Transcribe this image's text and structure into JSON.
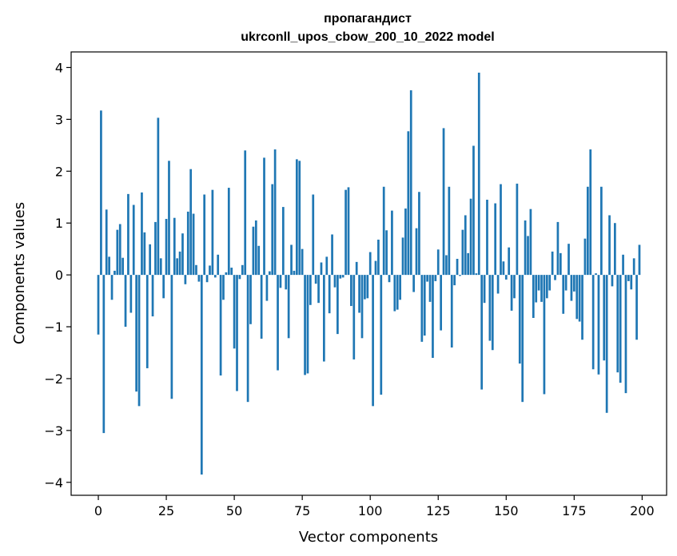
{
  "chart_data": {
    "type": "bar",
    "title_line1": "пропагандист",
    "title_line2": "ukrconll_upos_cbow_200_10_2022 model",
    "xlabel": "Vector components",
    "ylabel": "Components values",
    "xlim": [
      -10,
      209
    ],
    "ylim": [
      -4.25,
      4.3
    ],
    "xticks": [
      0,
      25,
      50,
      75,
      100,
      125,
      150,
      175,
      200
    ],
    "xtick_labels": [
      "0",
      "25",
      "50",
      "75",
      "100",
      "125",
      "150",
      "175",
      "200"
    ],
    "yticks": [
      -4,
      -3,
      -2,
      -1,
      0,
      1,
      2,
      3,
      4
    ],
    "ytick_labels": [
      "−4",
      "−3",
      "−2",
      "−1",
      "0",
      "1",
      "2",
      "3",
      "4"
    ],
    "grid": false,
    "bar_color": "#1f77b4",
    "x": [
      0,
      1,
      2,
      3,
      4,
      5,
      6,
      7,
      8,
      9,
      10,
      11,
      12,
      13,
      14,
      15,
      16,
      17,
      18,
      19,
      20,
      21,
      22,
      23,
      24,
      25,
      26,
      27,
      28,
      29,
      30,
      31,
      32,
      33,
      34,
      35,
      36,
      37,
      38,
      39,
      40,
      41,
      42,
      43,
      44,
      45,
      46,
      47,
      48,
      49,
      50,
      51,
      52,
      53,
      54,
      55,
      56,
      57,
      58,
      59,
      60,
      61,
      62,
      63,
      64,
      65,
      66,
      67,
      68,
      69,
      70,
      71,
      72,
      73,
      74,
      75,
      76,
      77,
      78,
      79,
      80,
      81,
      82,
      83,
      84,
      85,
      86,
      87,
      88,
      89,
      90,
      91,
      92,
      93,
      94,
      95,
      96,
      97,
      98,
      99,
      100,
      101,
      102,
      103,
      104,
      105,
      106,
      107,
      108,
      109,
      110,
      111,
      112,
      113,
      114,
      115,
      116,
      117,
      118,
      119,
      120,
      121,
      122,
      123,
      124,
      125,
      126,
      127,
      128,
      129,
      130,
      131,
      132,
      133,
      134,
      135,
      136,
      137,
      138,
      139,
      140,
      141,
      142,
      143,
      144,
      145,
      146,
      147,
      148,
      149,
      150,
      151,
      152,
      153,
      154,
      155,
      156,
      157,
      158,
      159,
      160,
      161,
      162,
      163,
      164,
      165,
      166,
      167,
      168,
      169,
      170,
      171,
      172,
      173,
      174,
      175,
      176,
      177,
      178,
      179,
      180,
      181,
      182,
      183,
      184,
      185,
      186,
      187,
      188,
      189,
      190,
      191,
      192,
      193,
      194,
      195,
      196,
      197,
      198,
      199
    ],
    "values": [
      -1.15,
      3.17,
      -3.05,
      1.26,
      0.35,
      -0.48,
      0.08,
      0.87,
      0.98,
      0.33,
      -1.0,
      1.56,
      -0.73,
      1.35,
      -2.25,
      -2.53,
      1.59,
      0.82,
      -1.8,
      0.59,
      -0.8,
      1.02,
      3.03,
      0.32,
      -0.45,
      1.08,
      2.2,
      -2.39,
      1.1,
      0.32,
      0.45,
      0.8,
      -0.18,
      1.22,
      2.04,
      1.18,
      0.19,
      -0.13,
      -3.85,
      1.55,
      -0.14,
      0.18,
      1.64,
      -0.05,
      0.39,
      -1.94,
      -0.48,
      0.05,
      1.68,
      0.14,
      -1.42,
      -2.24,
      -0.08,
      0.19,
      2.4,
      -2.45,
      -0.95,
      0.93,
      1.05,
      0.56,
      -1.23,
      2.26,
      -0.5,
      0.07,
      1.75,
      2.42,
      -1.84,
      -0.25,
      1.31,
      -0.28,
      -1.22,
      0.58,
      0.08,
      2.23,
      2.2,
      0.5,
      -1.93,
      -1.9,
      -0.58,
      1.55,
      -0.17,
      -0.54,
      0.24,
      -1.67,
      0.35,
      -0.74,
      0.78,
      -0.24,
      -1.14,
      -0.07,
      -0.05,
      1.64,
      1.69,
      -0.6,
      -1.63,
      0.25,
      -0.73,
      -1.22,
      -0.47,
      -0.45,
      0.44,
      -2.53,
      0.27,
      0.68,
      -2.31,
      1.7,
      0.86,
      -0.14,
      1.24,
      -0.7,
      -0.67,
      -0.48,
      0.72,
      1.28,
      2.77,
      3.56,
      -0.33,
      0.9,
      1.6,
      -1.29,
      -1.17,
      -0.13,
      -0.52,
      -1.6,
      -0.12,
      0.49,
      -1.07,
      2.83,
      0.38,
      1.7,
      -1.4,
      -0.2,
      0.31,
      -0.02,
      0.87,
      1.15,
      0.42,
      1.47,
      2.49,
      0.03,
      3.9,
      -2.21,
      -0.54,
      1.45,
      -1.27,
      -1.45,
      1.38,
      -0.36,
      1.75,
      0.26,
      -0.09,
      0.53,
      -0.69,
      -0.45,
      1.76,
      -1.71,
      -2.45,
      1.05,
      0.75,
      1.27,
      -0.83,
      -0.53,
      -0.3,
      -0.52,
      -2.3,
      -0.45,
      -0.3,
      0.45,
      -0.1,
      1.02,
      0.42,
      -0.75,
      -0.3,
      0.6,
      -0.5,
      -0.32,
      -0.85,
      -0.9,
      -1.25,
      0.7,
      1.7,
      2.42,
      -1.82,
      0.03,
      -1.92,
      1.7,
      -1.65,
      -2.66,
      1.15,
      -0.22,
      1.0,
      -1.88,
      -2.08,
      0.39,
      -2.28,
      -0.12,
      -0.28,
      0.32,
      -1.25,
      0.58
    ]
  }
}
